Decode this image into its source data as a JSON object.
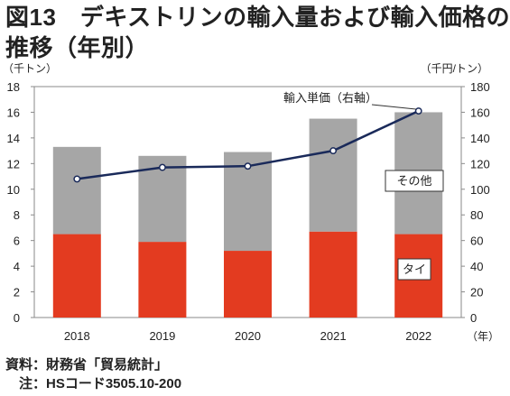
{
  "header": {
    "title_line1": "図13　デキストリンの輸入量および輸入価格の",
    "title_line2": "推移（年別）"
  },
  "footer": {
    "source": "資料：財務省「貿易統計」",
    "note": "　注：HSコード3505.10-200"
  },
  "chart_data": {
    "type": "bar",
    "stacked": true,
    "categories": [
      "2018",
      "2019",
      "2020",
      "2021",
      "2022"
    ],
    "series": [
      {
        "name": "タイ",
        "values": [
          6.5,
          5.9,
          5.2,
          6.7,
          6.5
        ],
        "color": "#e33b20"
      },
      {
        "name": "その他",
        "values": [
          6.8,
          6.7,
          7.7,
          8.8,
          9.5
        ],
        "color": "#a6a6a6"
      }
    ],
    "line_series": {
      "name": "輸入単価（右軸）",
      "values": [
        108,
        117,
        118,
        130,
        161
      ],
      "color": "#1a2a5a",
      "axis": "right"
    },
    "ylabel_left": "（千トン）",
    "ylabel_right": "（千円/トン）",
    "xlabel": "（年）",
    "ylim_left": [
      0,
      18
    ],
    "yticks_left": [
      "0",
      "2",
      "4",
      "6",
      "8",
      "10",
      "12",
      "14",
      "16",
      "18"
    ],
    "ylim_right": [
      0,
      180
    ],
    "yticks_right": [
      "0",
      "20",
      "40",
      "60",
      "80",
      "100",
      "120",
      "140",
      "160",
      "180"
    ],
    "grid": false
  }
}
